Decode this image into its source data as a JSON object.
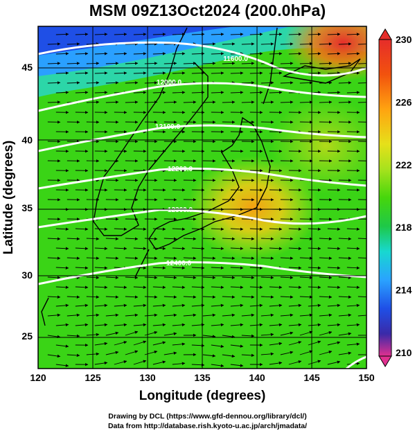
{
  "title": "MSM 09Z13Oct2024 (200.0hPa)",
  "x_axis": {
    "label": "Longitude (degrees)",
    "ticks": [
      "120",
      "125",
      "130",
      "135",
      "140",
      "145",
      "150"
    ]
  },
  "y_axis": {
    "label": "Latitude  (degrees)",
    "ticks": [
      "25",
      "30",
      "35",
      "40",
      "45"
    ]
  },
  "colorbar": {
    "ticks": [
      "230",
      "226",
      "222",
      "218",
      "214",
      "210"
    ],
    "colors": [
      "#e0308f",
      "#3a2aa8",
      "#1f4fe6",
      "#2aa2ff",
      "#18d8d0",
      "#1ec848",
      "#46d60c",
      "#a7e21d",
      "#e6e01a",
      "#ffa310",
      "#f2520e",
      "#e62d2a"
    ]
  },
  "contours": [
    {
      "value": 11600,
      "label": "11600.0"
    },
    {
      "value": 12000,
      "label": "12000.0"
    },
    {
      "value": 12100,
      "label": "12100.0"
    },
    {
      "value": 12200,
      "label": "12200.0"
    },
    {
      "value": 12300,
      "label": "12300.0"
    },
    {
      "value": 12400,
      "label": "12400.0"
    }
  ],
  "credits": {
    "line1": "Drawing by DCL (https://www.gfd-dennou.org/library/dcl/)",
    "line2": "Data from http://database.rish.kyoto-u.ac.jp/arch/jmadata/"
  }
}
